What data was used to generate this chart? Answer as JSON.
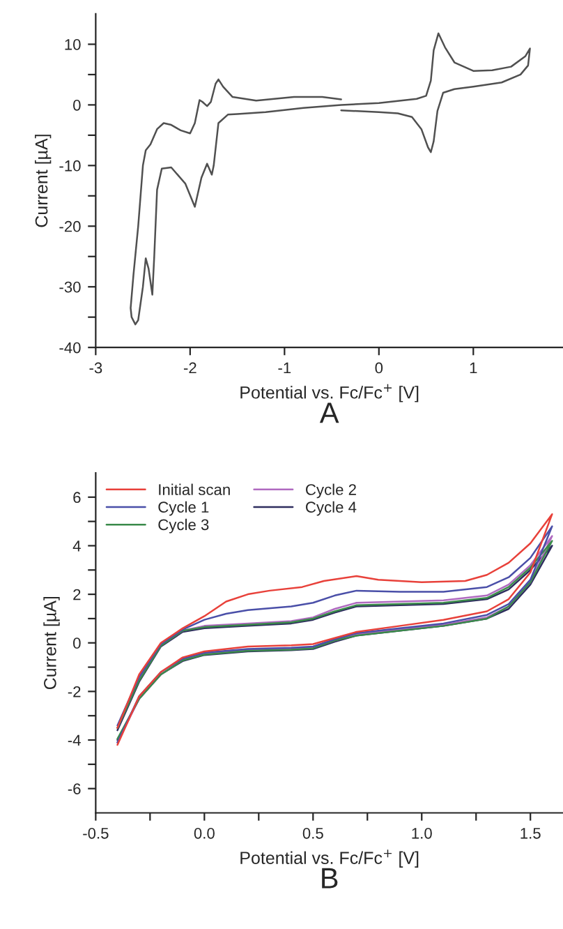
{
  "chart_data": [
    {
      "type": "line",
      "xlabel": "Potential vs. Fc/Fc$^{+}$ [V]",
      "ylabel": "Current [µA]",
      "annotations": [
        "A"
      ],
      "xlim": [
        -3,
        1.95
      ],
      "xticks": [
        -3,
        -2,
        -1,
        0,
        1
      ],
      "ylim": [
        -40,
        15
      ],
      "yticks": [
        -40,
        {
          "value": -35,
          "label": null
        },
        -30,
        {
          "value": -25,
          "label": null
        },
        -20,
        {
          "value": -15,
          "label": null
        },
        -10,
        {
          "value": -5,
          "label": null
        },
        0,
        {
          "value": 5,
          "label": null
        },
        10
      ],
      "grid": false,
      "legend": false,
      "marker": "none",
      "line_style": "solid",
      "series": [
        {
          "color": "#505050",
          "x": [
            -0.4,
            0,
            0.2,
            0.35,
            0.45,
            0.52,
            0.55,
            0.58,
            0.62,
            0.68,
            0.8,
            1.0,
            1.3,
            1.5,
            1.58,
            1.6,
            1.55,
            1.4,
            1.2,
            1.0,
            0.8,
            0.7,
            0.63,
            0.58,
            0.55,
            0.5,
            0.4,
            0,
            -0.4,
            -0.8,
            -1.2,
            -1.5,
            -1.6,
            -1.7,
            -1.75,
            -1.77,
            -1.82,
            -1.88,
            -1.95,
            -2.05,
            -2.2,
            -2.3,
            -2.35,
            -2.38,
            -2.4,
            -2.44,
            -2.47,
            -2.5,
            -2.55,
            -2.58,
            -2.62,
            -2.63,
            -2.6,
            -2.55,
            -2.5,
            -2.47,
            -2.42,
            -2.35,
            -2.28,
            -2.2,
            -2.1,
            -2.0,
            -1.95,
            -1.9,
            -1.87,
            -1.82,
            -1.78,
            -1.73,
            -1.7,
            -1.65,
            -1.55,
            -1.3,
            -0.9,
            -0.6,
            -0.4
          ],
          "values": [
            -0.9,
            -1.2,
            -1.4,
            -2,
            -4,
            -7,
            -7.8,
            -6,
            -1,
            2,
            2.6,
            3,
            3.7,
            5,
            6.5,
            9.3,
            8,
            6.3,
            5.7,
            5.6,
            7,
            9.5,
            11.8,
            9,
            4,
            1.5,
            1,
            0.3,
            0,
            -0.5,
            -1.2,
            -1.5,
            -1.6,
            -3,
            -10,
            -11.5,
            -9.7,
            -12,
            -16.8,
            -13,
            -10.3,
            -10.5,
            -14,
            -25,
            -31.3,
            -27,
            -25.3,
            -30,
            -35.5,
            -36.2,
            -35,
            -33.5,
            -28,
            -20,
            -10,
            -7.5,
            -6.5,
            -4,
            -3,
            -3.3,
            -4.2,
            -4.7,
            -3,
            0.8,
            0.5,
            -0.2,
            0.5,
            3.5,
            4.2,
            3,
            1.3,
            0.7,
            1.3,
            1.3,
            0.9
          ]
        }
      ]
    },
    {
      "type": "line",
      "xlabel": "Potential vs. Fc/Fc$^{+}$ [V]",
      "ylabel": "Current [µA]",
      "annotations": [
        "B"
      ],
      "xlim": [
        -0.5,
        1.65
      ],
      "xticks": [
        -0.5,
        {
          "value": -0.25,
          "label": null
        },
        {
          "value": 0,
          "label": "0.0"
        },
        {
          "value": 0.25,
          "label": null
        },
        0.5,
        {
          "value": 0.75,
          "label": null
        },
        {
          "value": 1,
          "label": "1.0"
        },
        {
          "value": 1.25,
          "label": null
        },
        1.5
      ],
      "ylim": [
        -7,
        7
      ],
      "yticks": [
        -6,
        {
          "value": -5,
          "label": null
        },
        -4,
        {
          "value": -3,
          "label": null
        },
        -2,
        {
          "value": -1,
          "label": null
        },
        0,
        {
          "value": 1,
          "label": null
        },
        2,
        {
          "value": 3,
          "label": null
        },
        4,
        {
          "value": 5,
          "label": null
        },
        6
      ],
      "grid": false,
      "legend": "top left",
      "marker": "none",
      "line_style": "solid",
      "series": [
        {
          "name": "Initial scan",
          "color": "#e8413a",
          "x": [
            -0.4,
            -0.3,
            -0.2,
            -0.1,
            0,
            0.2,
            0.4,
            0.5,
            0.6,
            0.7,
            0.9,
            1.1,
            1.3,
            1.4,
            1.5,
            1.6,
            1.5,
            1.4,
            1.3,
            1.2,
            1.0,
            0.8,
            0.7,
            0.55,
            0.45,
            0.3,
            0.2,
            0.1,
            0,
            -0.1,
            -0.2,
            -0.3,
            -0.4
          ],
          "values": [
            -4.2,
            -2.2,
            -1.2,
            -0.6,
            -0.35,
            -0.15,
            -0.1,
            -0.05,
            0.2,
            0.45,
            0.7,
            0.95,
            1.3,
            1.8,
            2.9,
            5.3,
            4.1,
            3.3,
            2.8,
            2.55,
            2.5,
            2.6,
            2.75,
            2.55,
            2.3,
            2.15,
            2.0,
            1.7,
            1.1,
            0.6,
            0,
            -1.3,
            -3.5
          ]
        },
        {
          "name": "Cycle 1",
          "color": "#4a4fa8",
          "x": [
            -0.4,
            -0.3,
            -0.2,
            -0.1,
            0,
            0.2,
            0.4,
            0.5,
            0.6,
            0.7,
            0.9,
            1.1,
            1.3,
            1.4,
            1.5,
            1.6,
            1.5,
            1.4,
            1.3,
            1.1,
            0.9,
            0.7,
            0.6,
            0.5,
            0.4,
            0.2,
            0.1,
            0,
            -0.1,
            -0.2,
            -0.3,
            -0.4
          ],
          "values": [
            -4.1,
            -2.2,
            -1.2,
            -0.65,
            -0.4,
            -0.25,
            -0.2,
            -0.15,
            0.15,
            0.4,
            0.6,
            0.8,
            1.15,
            1.6,
            2.6,
            4.8,
            3.5,
            2.7,
            2.3,
            2.1,
            2.1,
            2.15,
            1.95,
            1.65,
            1.5,
            1.35,
            1.2,
            0.95,
            0.55,
            -0.05,
            -1.4,
            -3.4
          ]
        },
        {
          "name": "Cycle 3",
          "color": "#3a8a4a",
          "x": [
            -0.4,
            -0.3,
            -0.2,
            -0.1,
            0,
            0.2,
            0.4,
            0.5,
            0.6,
            0.7,
            0.9,
            1.1,
            1.3,
            1.4,
            1.5,
            1.6,
            1.5,
            1.4,
            1.3,
            1.1,
            0.9,
            0.7,
            0.6,
            0.5,
            0.4,
            0.2,
            0,
            -0.1,
            -0.2,
            -0.3,
            -0.4
          ],
          "values": [
            -3.95,
            -2.3,
            -1.3,
            -0.72,
            -0.48,
            -0.32,
            -0.28,
            -0.22,
            0.1,
            0.3,
            0.5,
            0.7,
            1.0,
            1.5,
            2.5,
            4.2,
            3.1,
            2.3,
            1.85,
            1.65,
            1.6,
            1.55,
            1.3,
            1.0,
            0.85,
            0.75,
            0.65,
            0.5,
            -0.12,
            -1.55,
            -3.5
          ]
        },
        {
          "name": "Cycle 2",
          "color": "#b06ac0",
          "x": [
            -0.4,
            -0.3,
            -0.2,
            -0.1,
            0,
            0.2,
            0.4,
            0.5,
            0.6,
            0.7,
            0.9,
            1.1,
            1.3,
            1.4,
            1.5,
            1.6,
            1.5,
            1.4,
            1.3,
            1.1,
            0.9,
            0.7,
            0.6,
            0.5,
            0.4,
            0.2,
            0,
            -0.1,
            -0.2,
            -0.3,
            -0.4
          ],
          "values": [
            -4.1,
            -2.3,
            -1.3,
            -0.7,
            -0.45,
            -0.3,
            -0.25,
            -0.2,
            0.1,
            0.35,
            0.55,
            0.75,
            1.05,
            1.5,
            2.5,
            4.4,
            3.2,
            2.4,
            1.95,
            1.75,
            1.7,
            1.65,
            1.4,
            1.05,
            0.9,
            0.8,
            0.7,
            0.5,
            -0.1,
            -1.5,
            -3.5
          ]
        },
        {
          "name": "Cycle 4",
          "color": "#2e2d5e",
          "x": [
            -0.4,
            -0.3,
            -0.2,
            -0.1,
            0,
            0.2,
            0.4,
            0.5,
            0.6,
            0.7,
            0.9,
            1.1,
            1.3,
            1.4,
            1.5,
            1.6,
            1.5,
            1.4,
            1.3,
            1.1,
            0.9,
            0.7,
            0.6,
            0.5,
            0.4,
            0.2,
            0,
            -0.1,
            -0.2,
            -0.3,
            -0.4
          ],
          "values": [
            -4.0,
            -2.3,
            -1.3,
            -0.75,
            -0.5,
            -0.35,
            -0.3,
            -0.25,
            0.05,
            0.3,
            0.5,
            0.7,
            1.0,
            1.4,
            2.4,
            4.0,
            3.0,
            2.2,
            1.8,
            1.6,
            1.55,
            1.5,
            1.25,
            0.95,
            0.8,
            0.7,
            0.6,
            0.45,
            -0.15,
            -1.6,
            -3.6
          ]
        }
      ]
    }
  ]
}
